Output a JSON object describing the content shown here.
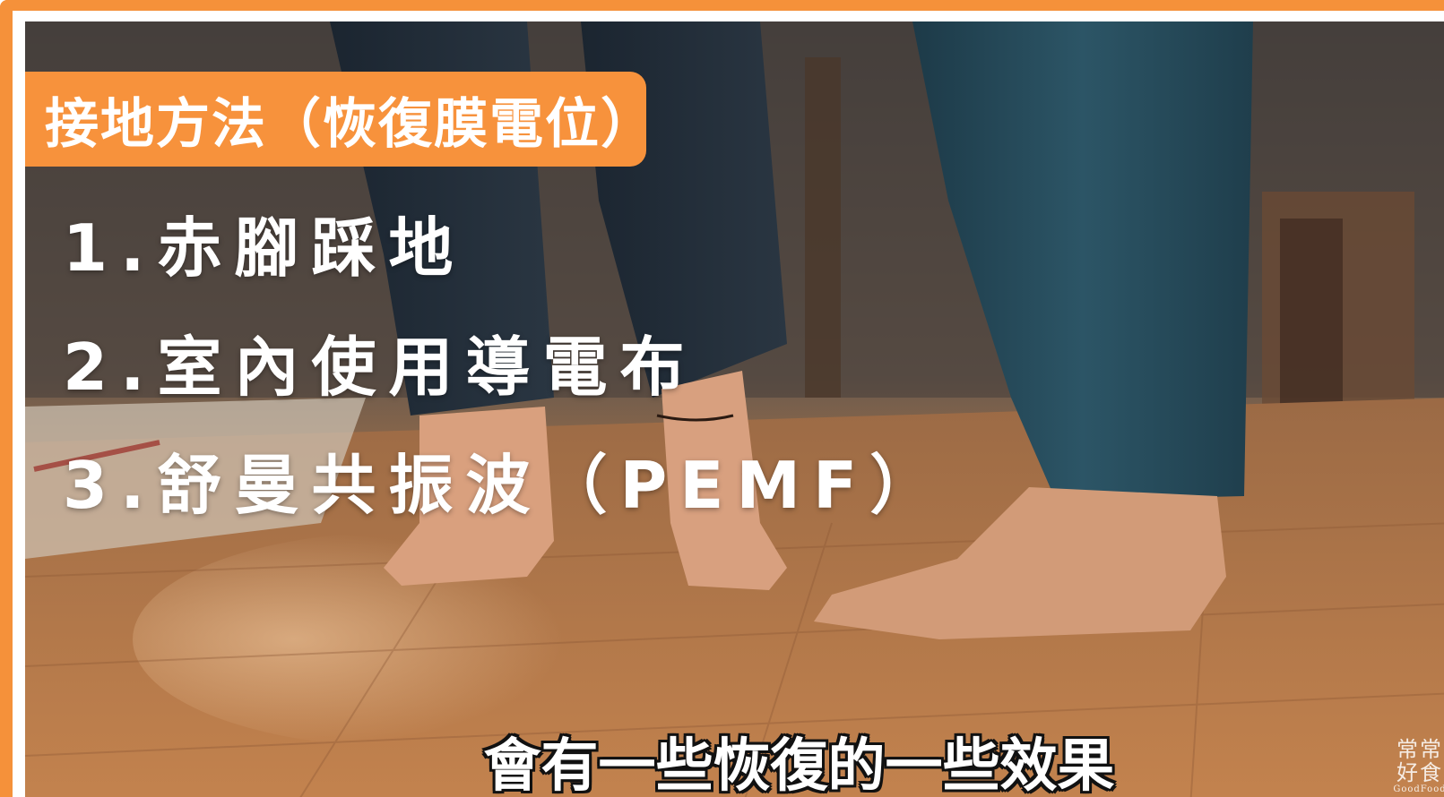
{
  "title": "接地方法（恢復膜電位）",
  "methods": [
    "1.赤腳踩地",
    "2.室內使用導電布",
    "3.舒曼共振波（PEMF）"
  ],
  "subtitle": "會有一些恢復的一些效果",
  "watermark": {
    "line1": "常常",
    "line2": "好食",
    "english": "GoodFood"
  },
  "colors": {
    "accent": "#f5913a",
    "text": "#ffffff"
  }
}
